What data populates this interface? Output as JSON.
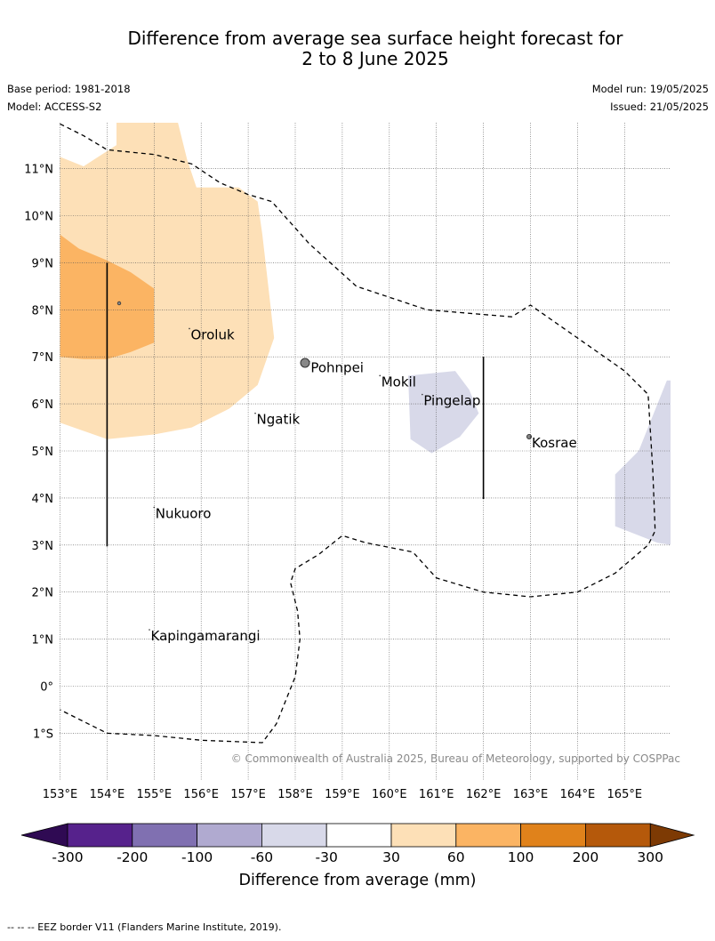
{
  "title": {
    "line1": "Difference from average sea surface height forecast for",
    "line2": "2 to 8 June 2025"
  },
  "meta": {
    "base_period": "Base period: 1981-2018",
    "model": "Model: ACCESS-S2",
    "model_run": "Model run: 19/05/2025",
    "issued": "Issued: 21/05/2025"
  },
  "map": {
    "lon_range": [
      153,
      166
    ],
    "lat_range": [
      -2,
      12
    ],
    "lat_ticks": [
      {
        "value": 11,
        "label": "11°N"
      },
      {
        "value": 10,
        "label": "10°N"
      },
      {
        "value": 9,
        "label": "9°N"
      },
      {
        "value": 8,
        "label": "8°N"
      },
      {
        "value": 7,
        "label": "7°N"
      },
      {
        "value": 6,
        "label": "6°N"
      },
      {
        "value": 5,
        "label": "5°N"
      },
      {
        "value": 4,
        "label": "4°N"
      },
      {
        "value": 3,
        "label": "3°N"
      },
      {
        "value": 2,
        "label": "2°N"
      },
      {
        "value": 1,
        "label": "1°N"
      },
      {
        "value": 0,
        "label": "0°"
      },
      {
        "value": -1,
        "label": "1°S"
      }
    ],
    "lon_ticks": [
      {
        "value": 153,
        "label": "153°E"
      },
      {
        "value": 154,
        "label": "154°E"
      },
      {
        "value": 155,
        "label": "155°E"
      },
      {
        "value": 156,
        "label": "156°E"
      },
      {
        "value": 157,
        "label": "157°E"
      },
      {
        "value": 158,
        "label": "158°E"
      },
      {
        "value": 159,
        "label": "159°E"
      },
      {
        "value": 160,
        "label": "160°E"
      },
      {
        "value": 161,
        "label": "161°E"
      },
      {
        "value": 162,
        "label": "162°E"
      },
      {
        "value": 163,
        "label": "163°E"
      },
      {
        "value": 164,
        "label": "164°E"
      },
      {
        "value": 165,
        "label": "165°E"
      }
    ],
    "places": [
      {
        "name": "Oroluk",
        "lon": 155.75,
        "lat": 7.6
      },
      {
        "name": "Pohnpei",
        "lon": 158.3,
        "lat": 6.9
      },
      {
        "name": "Mokil",
        "lon": 159.8,
        "lat": 6.6
      },
      {
        "name": "Pingelap",
        "lon": 160.7,
        "lat": 6.2
      },
      {
        "name": "Ngatik",
        "lon": 157.15,
        "lat": 5.8
      },
      {
        "name": "Kosrae",
        "lon": 163.0,
        "lat": 5.3
      },
      {
        "name": "Nukuoro",
        "lon": 155.0,
        "lat": 3.8
      },
      {
        "name": "Kapingamarangi",
        "lon": 154.9,
        "lat": 1.2
      }
    ],
    "shading": [
      {
        "level": "30 to 60",
        "color": "#fde0b7",
        "points": [
          [
            153,
            11.25
          ],
          [
            153.5,
            11.05
          ],
          [
            154.2,
            11.5
          ],
          [
            154.2,
            12
          ],
          [
            155.5,
            12
          ],
          [
            155.7,
            11.2
          ],
          [
            155.9,
            10.6
          ],
          [
            156.8,
            10.6
          ],
          [
            157.2,
            10.3
          ],
          [
            157.3,
            9.6
          ],
          [
            157.45,
            8.3
          ],
          [
            157.55,
            7.4
          ],
          [
            157.2,
            6.4
          ],
          [
            156.6,
            5.9
          ],
          [
            155.8,
            5.5
          ],
          [
            155,
            5.35
          ],
          [
            154,
            5.25
          ],
          [
            153,
            5.6
          ]
        ]
      },
      {
        "level": "60 to 100",
        "color": "#fbb463",
        "points": [
          [
            153,
            9.6
          ],
          [
            153.4,
            9.3
          ],
          [
            154,
            9.05
          ],
          [
            154.5,
            8.8
          ],
          [
            155,
            8.45
          ],
          [
            155,
            7.3
          ],
          [
            154.5,
            7.1
          ],
          [
            154,
            6.95
          ],
          [
            153.5,
            6.95
          ],
          [
            153,
            7.0
          ]
        ]
      },
      {
        "level": "-60 to -30",
        "color": "#d8d9e9",
        "points": [
          [
            160.4,
            6.6
          ],
          [
            161.4,
            6.7
          ],
          [
            161.7,
            6.3
          ],
          [
            161.9,
            5.8
          ],
          [
            161.5,
            5.3
          ],
          [
            160.9,
            4.95
          ],
          [
            160.45,
            5.25
          ]
        ]
      },
      {
        "level": "-60 to -30",
        "color": "#d8d9e9",
        "points": [
          [
            165.9,
            6.5
          ],
          [
            166,
            6.5
          ],
          [
            166,
            3
          ],
          [
            165.7,
            3.05
          ],
          [
            164.8,
            3.4
          ],
          [
            164.8,
            4.5
          ],
          [
            165.3,
            5.0
          ]
        ]
      }
    ],
    "eez_border": [
      [
        [
          153,
          11.95
        ],
        [
          153.5,
          11.7
        ],
        [
          154,
          11.4
        ],
        [
          155,
          11.3
        ],
        [
          155.8,
          11.1
        ],
        [
          156.4,
          10.7
        ],
        [
          157,
          10.45
        ],
        [
          157.5,
          10.3
        ],
        [
          158.3,
          9.4
        ],
        [
          159.3,
          8.5
        ],
        [
          160.8,
          8
        ],
        [
          162,
          7.9
        ],
        [
          162.6,
          7.85
        ],
        [
          163,
          8.1
        ],
        [
          164,
          7.4
        ],
        [
          165,
          6.7
        ],
        [
          165.5,
          6.2
        ],
        [
          165.6,
          4.6
        ],
        [
          165.65,
          3.3
        ],
        [
          165.5,
          3
        ],
        [
          164.8,
          2.4
        ],
        [
          164,
          2
        ],
        [
          163,
          1.9
        ],
        [
          162,
          2.0
        ],
        [
          161,
          2.3
        ],
        [
          160.5,
          2.85
        ],
        [
          159.5,
          3.05
        ],
        [
          159,
          3.2
        ],
        [
          158.5,
          2.8
        ],
        [
          158,
          2.5
        ],
        [
          157.9,
          2.2
        ],
        [
          158.05,
          1.6
        ],
        [
          158.1,
          1.0
        ],
        [
          158,
          0.2
        ],
        [
          157.6,
          -0.8
        ],
        [
          157.3,
          -1.2
        ],
        [
          156,
          -1.15
        ],
        [
          155,
          -1.05
        ],
        [
          154,
          -1
        ],
        [
          153.6,
          -0.8
        ],
        [
          153,
          -0.5
        ]
      ]
    ],
    "vertical_bars": [
      {
        "lon": 154.0,
        "lat_from": 2.97,
        "lat_to": 9.0
      },
      {
        "lon": 162.0,
        "lat_from": 3.98,
        "lat_to": 7.0
      }
    ],
    "copyright": "© Commonwealth of Australia 2025, Bureau of Meteorology, supported by COSPPac"
  },
  "colorbar": {
    "title": "Difference from average (mm)",
    "boundaries": [
      "-300",
      "-200",
      "-100",
      "-60",
      "-30",
      "30",
      "60",
      "100",
      "200",
      "300"
    ],
    "colors": [
      "#56228c",
      "#8070b1",
      "#b0aad0",
      "#d8d9e9",
      "#ffffff",
      "#fde0b7",
      "#fbb463",
      "#e0821b",
      "#b5590b"
    ],
    "extend_low_color": "#2f0a53",
    "extend_high_color": "#7d3a04"
  },
  "footnote": "--  --  -- EEZ border V11 (Flanders Marine Institute, 2019)."
}
